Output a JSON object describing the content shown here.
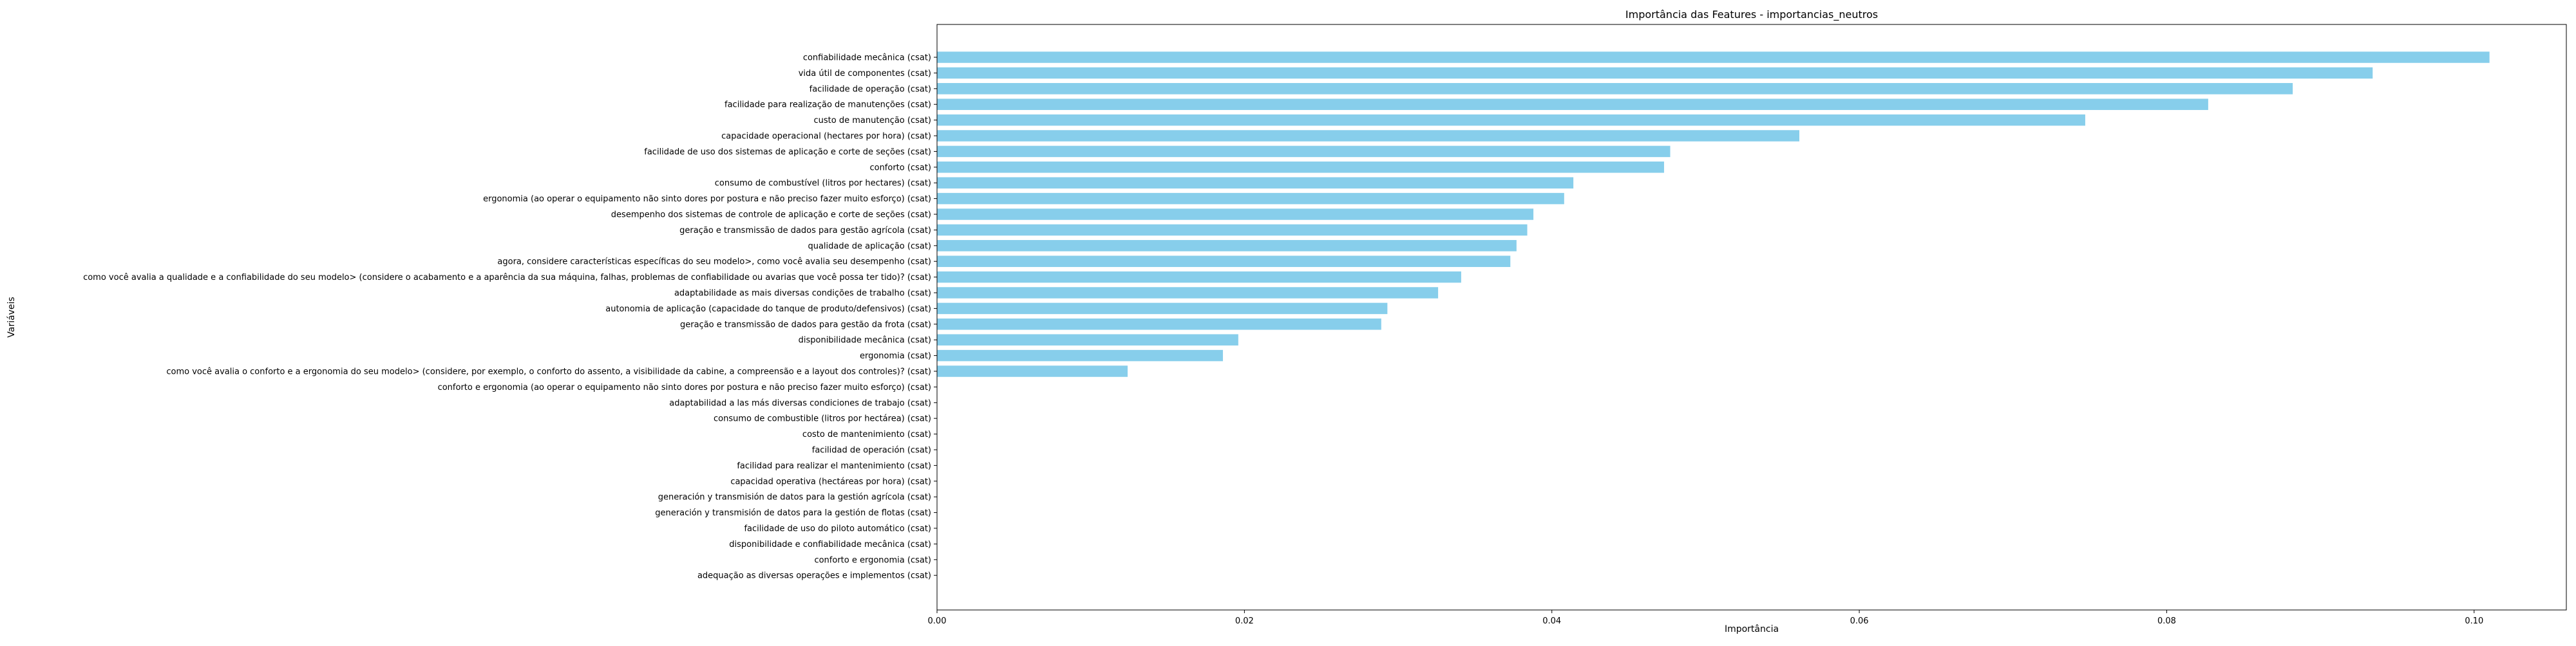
{
  "chart_data": {
    "type": "bar",
    "orientation": "horizontal",
    "title": "Importância das Features - importancias_neutros",
    "xlabel": "Importância",
    "ylabel": "Variáveis",
    "xlim": [
      0.0,
      0.106
    ],
    "xticks": [
      0.0,
      0.02,
      0.04,
      0.06,
      0.08,
      0.1
    ],
    "xtick_labels": [
      "0.00",
      "0.02",
      "0.04",
      "0.06",
      "0.08",
      "0.10"
    ],
    "bar_color": "#87CEEB",
    "grid": false,
    "categories": [
      "confiabilidade mecânica (csat)",
      "vida útil de componentes (csat)",
      "facilidade de operação (csat)",
      "facilidade para realização de manutenções (csat)",
      "custo de manutenção (csat)",
      "capacidade operacional (hectares por hora) (csat)",
      "facilidade de uso dos sistemas de aplicação e corte de seções (csat)",
      "conforto (csat)",
      "consumo de combustível (litros por hectares) (csat)",
      "ergonomia (ao operar o equipamento não sinto dores por postura e não preciso fazer muito esforço) (csat)",
      "desempenho dos sistemas de controle de aplicação e corte de seções (csat)",
      "geração e transmissão de dados para gestão agrícola (csat)",
      "qualidade de aplicação (csat)",
      "agora, considere características específicas do seu modelo>, como você avalia seu desempenho (csat)",
      "como você avalia a qualidade e a confiabilidade do seu modelo> (considere o acabamento e a aparência da sua máquina, falhas, problemas de confiabilidade ou avarias que você possa ter tido)? (csat)",
      "adaptabilidade as mais diversas condições de trabalho (csat)",
      "autonomia de aplicação (capacidade do tanque de produto/defensivos) (csat)",
      "geração e transmissão de dados para gestão da frota (csat)",
      "disponibilidade mecânica (csat)",
      "ergonomia (csat)",
      "como você avalia o conforto e a ergonomia do seu modelo>  (considere, por exemplo, o conforto do assento, a visibilidade da cabine, a compreensão e a layout dos controles)? (csat)",
      "conforto e ergonomia (ao operar o equipamento não sinto dores por postura e não preciso fazer muito esforço) (csat)",
      "adaptabilidad a las más diversas condiciones de trabajo (csat)",
      "consumo de combustible (litros por hectárea) (csat)",
      "costo de mantenimiento (csat)",
      "facilidad de operación (csat)",
      "facilidad para realizar el mantenimiento (csat)",
      "capacidad operativa (hectáreas por hora) (csat)",
      "generación y transmisión de datos para la gestión agrícola (csat)",
      "generación y transmisión de datos para la gestión de flotas (csat)",
      "facilidade de uso do piloto automático (csat)",
      "disponibilidade e confiabilidade mecânica  (csat)",
      "conforto e ergonomia (csat)",
      "adequação as diversas operações e implementos (csat)"
    ],
    "values": [
      0.101,
      0.0934,
      0.0882,
      0.0827,
      0.0747,
      0.0561,
      0.0477,
      0.0473,
      0.0414,
      0.0408,
      0.0388,
      0.0384,
      0.0377,
      0.0373,
      0.0341,
      0.0326,
      0.0293,
      0.0289,
      0.0196,
      0.0186,
      0.0124,
      0,
      0,
      0,
      0,
      0,
      0,
      0,
      0,
      0,
      0,
      0,
      0,
      0
    ]
  }
}
